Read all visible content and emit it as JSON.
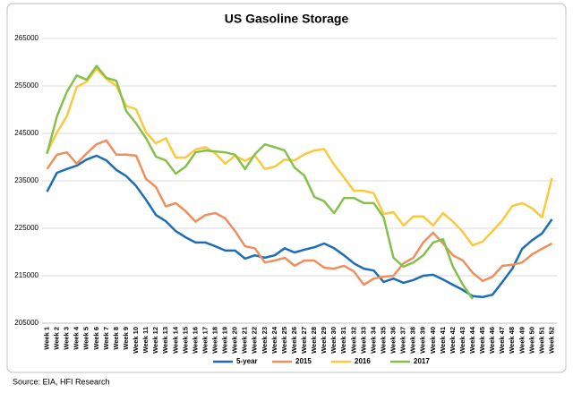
{
  "chart_data": {
    "type": "line",
    "title": "US Gasoline Storage",
    "categories": [
      "Week 1",
      "Week 2",
      "Week 3",
      "Week 4",
      "Week 5",
      "Week 6",
      "Week 7",
      "Week 8",
      "Week 9",
      "Week 10",
      "Week 11",
      "Week 12",
      "Week 13",
      "Week 14",
      "Week 15",
      "Week 16",
      "Week 17",
      "Week 18",
      "Week 19",
      "Week 20",
      "Week 21",
      "Week 22",
      "Week 23",
      "Week 24",
      "Week 25",
      "Week 26",
      "Week 27",
      "Week 28",
      "Week 29",
      "Week 30",
      "Week 31",
      "Week 32",
      "Week 33",
      "Week 34",
      "Week 35",
      "Week 36",
      "Week 37",
      "Week 38",
      "Week 39",
      "Week 40",
      "Week 41",
      "Week 42",
      "Week 43",
      "Week 44",
      "Week 45",
      "Week 46",
      "Week 47",
      "Week 48",
      "Week 49",
      "Week 50",
      "Week 51",
      "Week 52"
    ],
    "series": [
      {
        "name": "5-year",
        "color": "#1f6db5",
        "values": [
          232700,
          236700,
          237500,
          238200,
          239500,
          240300,
          239300,
          237300,
          236000,
          233900,
          231000,
          227800,
          226500,
          224400,
          223100,
          222000,
          222000,
          221200,
          220300,
          220300,
          218600,
          219300,
          218800,
          219300,
          220800,
          219900,
          220500,
          221000,
          221800,
          220800,
          219300,
          217600,
          216500,
          216100,
          213700,
          214400,
          213500,
          214100,
          215000,
          215200,
          214200,
          213100,
          212000,
          210700,
          210500,
          211000,
          213700,
          216500,
          220700,
          222500,
          223900,
          226900
        ]
      },
      {
        "name": "2015",
        "color": "#ee8f5e",
        "values": [
          237500,
          240500,
          241000,
          238600,
          240800,
          242700,
          243500,
          240500,
          240500,
          240300,
          235400,
          233700,
          229600,
          230300,
          228600,
          226400,
          227800,
          228200,
          227100,
          224400,
          221200,
          220800,
          217800,
          218200,
          218800,
          217100,
          218200,
          218200,
          216700,
          216500,
          217100,
          215900,
          213100,
          214400,
          214800,
          215000,
          217600,
          218800,
          222000,
          224100,
          221800,
          219300,
          218200,
          215600,
          213900,
          214800,
          217100,
          217300,
          217800,
          219500,
          220700,
          221800
        ]
      },
      {
        "name": "2016",
        "color": "#fbc93d",
        "values": [
          241000,
          245200,
          248600,
          254800,
          255900,
          258600,
          256500,
          255000,
          250800,
          250100,
          245200,
          242900,
          244000,
          239900,
          239900,
          241600,
          242100,
          240800,
          238600,
          240300,
          239200,
          240300,
          237500,
          238000,
          239500,
          239300,
          240600,
          241400,
          241700,
          238400,
          235700,
          232900,
          232900,
          232400,
          228000,
          228400,
          225600,
          227500,
          227500,
          225600,
          228200,
          226400,
          224200,
          221400,
          222200,
          224400,
          226700,
          229700,
          230300,
          229200,
          227300,
          235600
        ]
      },
      {
        "name": "2017",
        "color": "#86c04c",
        "values": [
          240700,
          248600,
          253700,
          257200,
          256300,
          259200,
          256700,
          256100,
          249700,
          247100,
          244000,
          240100,
          239300,
          236500,
          238000,
          241000,
          241400,
          241200,
          241000,
          240500,
          237500,
          240600,
          242700,
          242100,
          241400,
          237800,
          236100,
          231600,
          230700,
          228200,
          231400,
          231400,
          230300,
          230300,
          227300,
          218800,
          216900,
          217800,
          219300,
          222000,
          222700,
          216900,
          213100,
          210100,
          null,
          null,
          null,
          null,
          null,
          null,
          null,
          null
        ]
      }
    ],
    "ylim": [
      205000,
      265000
    ],
    "yticks": [
      205000,
      215000,
      225000,
      235000,
      245000,
      255000,
      265000
    ],
    "grid": true,
    "legend": "bottom"
  },
  "source": "Source: EIA, HFI Research"
}
